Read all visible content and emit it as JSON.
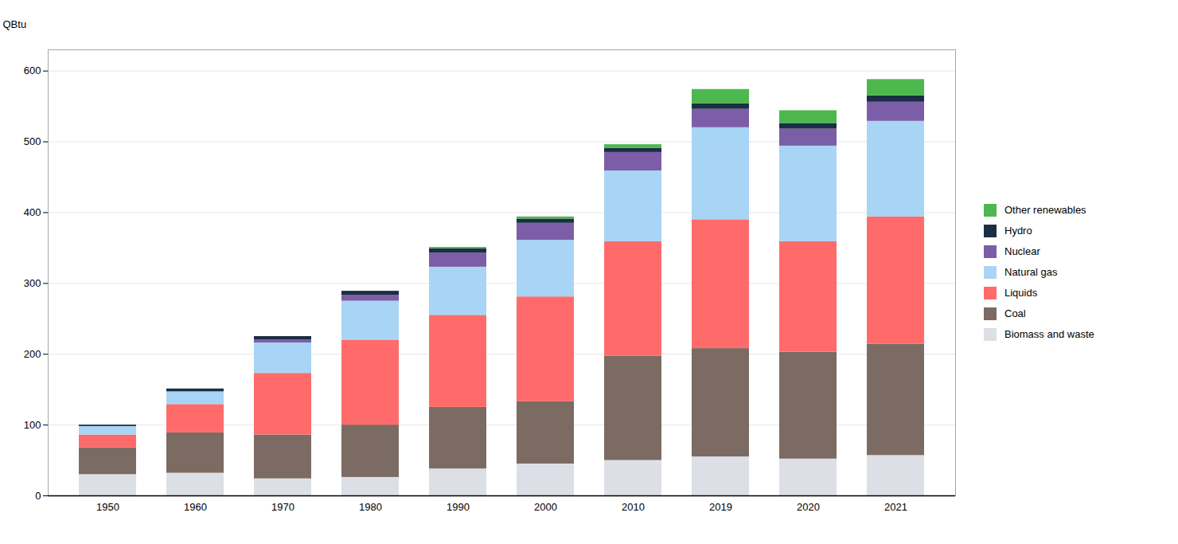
{
  "chart_data": {
    "type": "bar",
    "stacked": true,
    "ylabel": "QBtu",
    "categories": [
      "1950",
      "1960",
      "1970",
      "1980",
      "1990",
      "2000",
      "2010",
      "2019",
      "2020",
      "2021"
    ],
    "series": [
      {
        "name": "Biomass and waste",
        "color": "#dcdfe6",
        "values": [
          30,
          32,
          24,
          26,
          38,
          45,
          50,
          55,
          52,
          57
        ]
      },
      {
        "name": "Coal",
        "color": "#7b6b62",
        "values": [
          38,
          57,
          62,
          74,
          87,
          88,
          147,
          153,
          151,
          157
        ]
      },
      {
        "name": "Liquids",
        "color": "#ff6b6b",
        "values": [
          18,
          40,
          87,
          120,
          130,
          148,
          162,
          182,
          156,
          180
        ]
      },
      {
        "name": "Natural gas",
        "color": "#a8d4f5",
        "values": [
          12,
          18,
          43,
          55,
          68,
          80,
          100,
          130,
          135,
          135
        ]
      },
      {
        "name": "Nuclear",
        "color": "#7b5ea7",
        "values": [
          0,
          0,
          4,
          8,
          20,
          24,
          26,
          26,
          24,
          27
        ]
      },
      {
        "name": "Hydro",
        "color": "#1a2e44",
        "values": [
          2,
          4,
          5,
          6,
          6,
          6,
          6,
          8,
          8,
          9
        ]
      },
      {
        "name": "Other renewables",
        "color": "#4db84e",
        "values": [
          0,
          0,
          0,
          0,
          2,
          3,
          5,
          20,
          18,
          23
        ]
      }
    ],
    "ylim": [
      0,
      630
    ],
    "yticks": [
      0,
      100,
      200,
      300,
      400,
      500,
      600
    ],
    "grid": true,
    "legend": "right"
  }
}
